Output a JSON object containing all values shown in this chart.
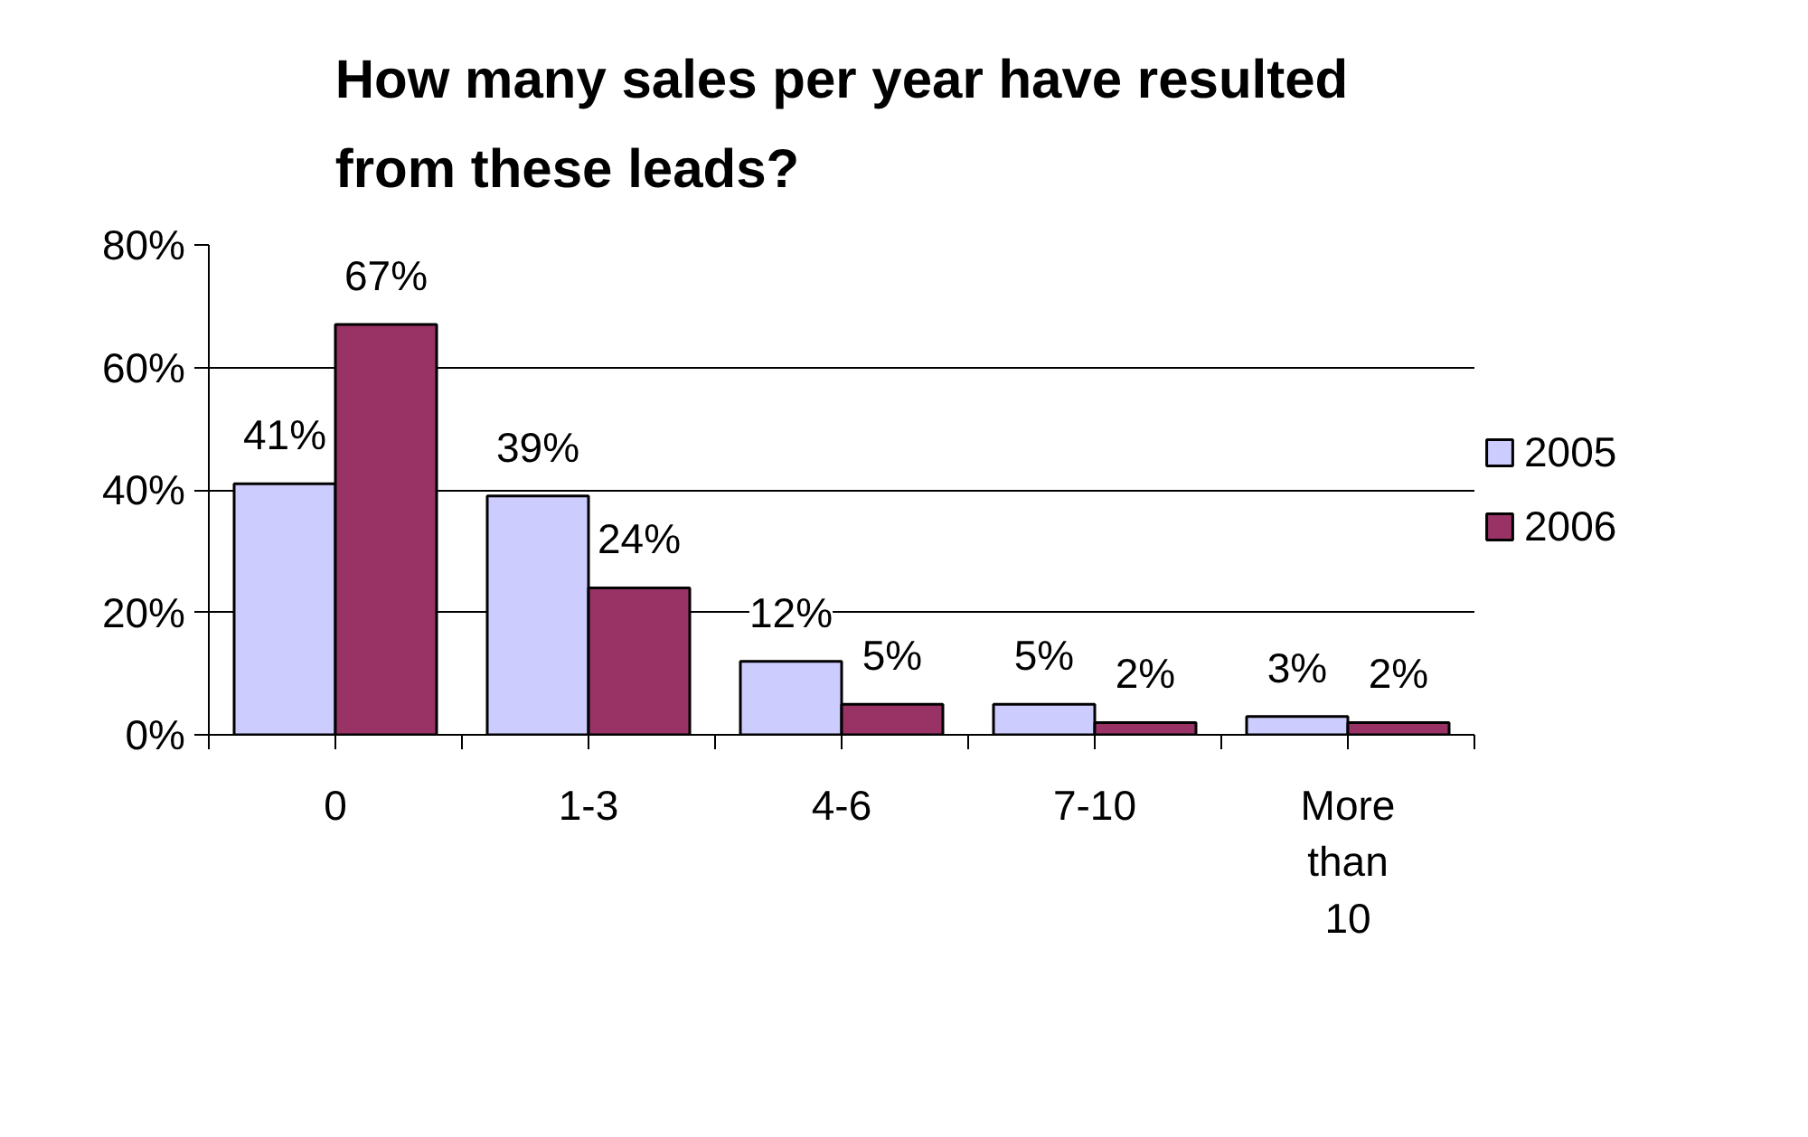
{
  "chart_data": {
    "type": "bar",
    "title": "How many sales per year have resulted from these leads?",
    "categories": [
      "0",
      "1-3",
      "4-6",
      "7-10",
      "More than 10"
    ],
    "series": [
      {
        "name": "2005",
        "color": "#ccccff",
        "values": [
          41,
          39,
          12,
          5,
          3
        ],
        "value_labels": [
          "41%",
          "39%",
          "12%",
          "5%",
          "3%"
        ]
      },
      {
        "name": "2006",
        "color": "#993366",
        "values": [
          67,
          24,
          5,
          2,
          2
        ],
        "value_labels": [
          "67%",
          "24%",
          "5%",
          "2%",
          "2%"
        ]
      }
    ],
    "ylim": [
      0,
      80
    ],
    "yticks": [
      {
        "value": 0,
        "label": "0%"
      },
      {
        "value": 20,
        "label": "20%"
      },
      {
        "value": 40,
        "label": "40%"
      },
      {
        "value": 60,
        "label": "60%"
      },
      {
        "value": 80,
        "label": "80%"
      }
    ],
    "grid": "y",
    "legend": "right"
  }
}
